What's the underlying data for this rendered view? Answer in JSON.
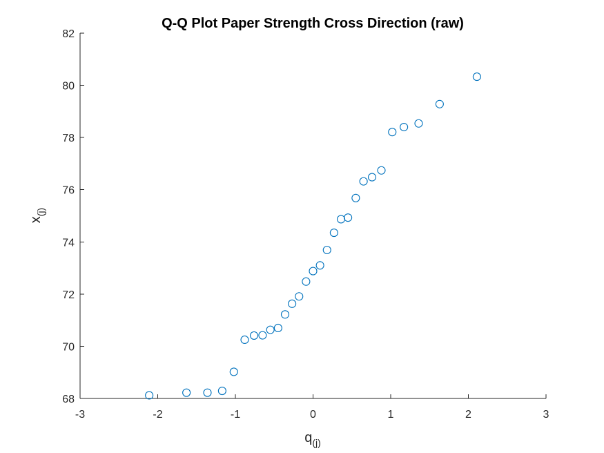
{
  "chart_data": {
    "type": "scatter",
    "title": "Q-Q Plot Paper Strength Cross Direction (raw)",
    "xlabel": {
      "main": "q",
      "sub": "(j)"
    },
    "ylabel": {
      "main": "x",
      "sub": "(j)"
    },
    "xlim": [
      -3,
      3
    ],
    "ylim": [
      68,
      82
    ],
    "x_ticks": [
      -3,
      -2,
      -1,
      0,
      1,
      2,
      3
    ],
    "y_ticks": [
      68,
      70,
      72,
      74,
      76,
      78,
      80,
      82
    ],
    "x_tick_labels": [
      "-3",
      "-2",
      "-1",
      "0",
      "1",
      "2",
      "3"
    ],
    "y_tick_labels": [
      "68",
      "70",
      "72",
      "74",
      "76",
      "78",
      "80",
      "82"
    ],
    "grid": false,
    "marker": "open-circle",
    "marker_color": "#0072BD",
    "x": [
      -2.11,
      -1.63,
      -1.36,
      -1.17,
      -1.02,
      -0.88,
      -0.76,
      -0.65,
      -0.55,
      -0.45,
      -0.36,
      -0.27,
      -0.18,
      -0.09,
      0.0,
      0.09,
      0.18,
      0.27,
      0.36,
      0.45,
      0.55,
      0.65,
      0.76,
      0.88,
      1.02,
      1.17,
      1.36,
      1.63,
      2.11
    ],
    "y": [
      68.12,
      68.22,
      68.22,
      68.29,
      69.02,
      70.25,
      70.41,
      70.42,
      70.63,
      70.7,
      71.22,
      71.63,
      71.91,
      72.48,
      72.88,
      73.1,
      73.69,
      74.35,
      74.87,
      74.93,
      75.68,
      76.32,
      76.48,
      76.74,
      78.21,
      78.4,
      78.54,
      79.28,
      80.33
    ]
  }
}
